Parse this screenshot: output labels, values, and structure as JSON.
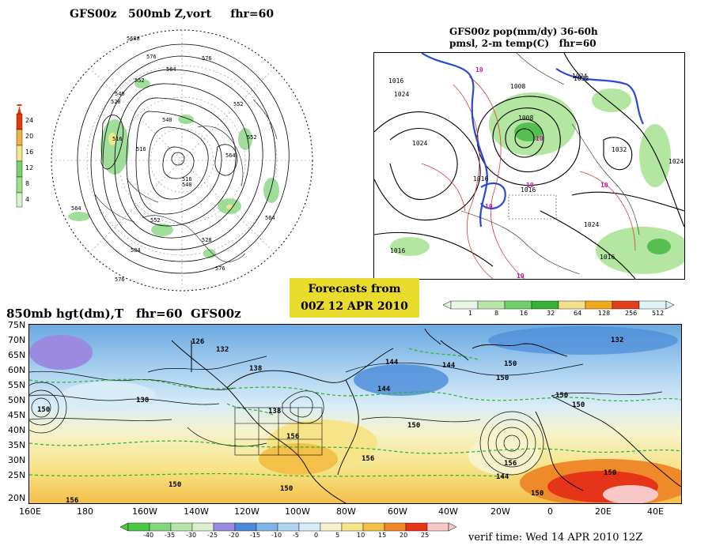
{
  "panel1": {
    "title": "GFS00z   500mb Z,vort     fhr=60",
    "contour_labels": [
      "5688",
      "576",
      "564",
      "552",
      "540",
      "528",
      "516",
      "552",
      "540",
      "552",
      "564",
      "516",
      "516",
      "564",
      "552",
      "564",
      "576",
      "584",
      "576",
      "576",
      "540",
      "528"
    ],
    "colorbar": {
      "ticks": [
        "24",
        "20",
        "16",
        "12",
        "8",
        "4"
      ],
      "colors": [
        "#e13a0c",
        "#f2b24a",
        "#f0e68c",
        "#7ccf6c",
        "#9fe08a",
        "#d5f5c8"
      ]
    }
  },
  "panel2": {
    "title_line1": "GFS00z pop(mm/dy) 36-60h",
    "title_line2": "pmsl, 2-m temp(C)   fhr=60",
    "isobar_labels": [
      "1016",
      "1024",
      "1008",
      "1024",
      "1008",
      "1032",
      "1024",
      "1016",
      "1032",
      "1016",
      "1016",
      "1024",
      "1016",
      "1024"
    ],
    "temp_labels": [
      "10",
      "10",
      "10",
      "10",
      "10",
      "10"
    ],
    "colorbar": {
      "ticks": [
        "1",
        "8",
        "16",
        "32",
        "64",
        "128",
        "256",
        "512"
      ],
      "colors": [
        "#e8f7e3",
        "#b7e8a8",
        "#6fd06a",
        "#36b236",
        "#f4e08a",
        "#f0a81c",
        "#e0401a",
        "#dff5f5"
      ]
    }
  },
  "forecast_box": {
    "line1": "Forecasts from",
    "line2": "00Z 12 APR 2010"
  },
  "panel3": {
    "title": "850mb hgt(dm),T   fhr=60  GFS00z",
    "lat_labels": [
      "75N",
      "70N",
      "65N",
      "60N",
      "55N",
      "50N",
      "45N",
      "40N",
      "35N",
      "30N",
      "25N",
      "20N"
    ],
    "lon_labels": [
      "160E",
      "180",
      "160W",
      "140W",
      "120W",
      "100W",
      "80W",
      "60W",
      "40W",
      "20W",
      "0",
      "20E",
      "40E"
    ],
    "height_labels": [
      "126",
      "132",
      "138",
      "144",
      "144",
      "144",
      "150",
      "150",
      "138",
      "150",
      "132",
      "150",
      "156",
      "156",
      "150",
      "150",
      "150",
      "156",
      "144",
      "150",
      "156",
      "150",
      "150",
      "138"
    ],
    "colorbar": {
      "ticks": [
        "-40",
        "-35",
        "-30",
        "-25",
        "-20",
        "-15",
        "-10",
        "-5",
        "0",
        "5",
        "10",
        "15",
        "20",
        "25"
      ],
      "colors": [
        "#4cc846",
        "#84d67a",
        "#b4e6a8",
        "#d9f0cf",
        "#9a8ae0",
        "#4a8ad8",
        "#7fb4e6",
        "#aed4f0",
        "#d8ecf8",
        "#f6f3cc",
        "#f7e489",
        "#f3c04a",
        "#ef8a2a",
        "#e63418",
        "#f8c8c8"
      ]
    }
  },
  "verif": "verif time: Wed 14 APR 2010 12Z"
}
